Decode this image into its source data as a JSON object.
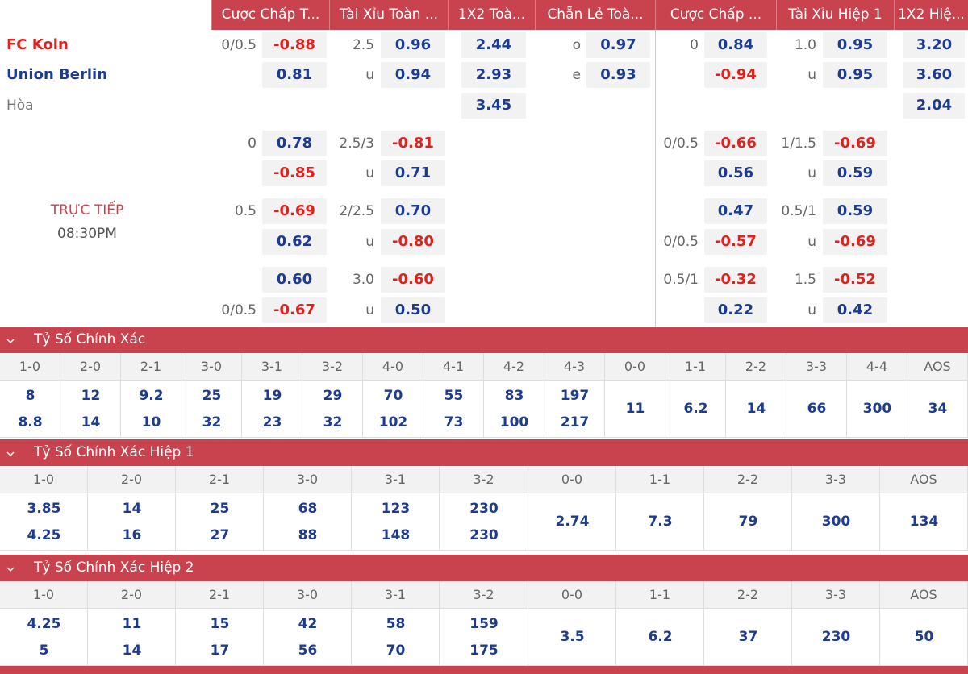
{
  "headers": [
    "Cược Chấp T...",
    "Tài Xỉu Toàn ...",
    "1X2 Toà...",
    "Chẵn Lẻ Toà...",
    "Cược Chấp ...",
    "Tài Xỉu Hiệp 1",
    "1X2 Hiệ..."
  ],
  "match": {
    "home": "FC Koln",
    "away": "Union Berlin",
    "draw": "Hòa",
    "status": "TRỰC TIẾP",
    "time": "08:30PM"
  },
  "odds_rows": [
    {
      "ft_handicap": {
        "line": "0/0.5",
        "odds": "-0.88"
      },
      "ft_total": {
        "line": "2.5",
        "odds": "0.96"
      },
      "ft_1x2": "2.44",
      "ft_odd_even": {
        "line": "o",
        "odds": "0.97"
      },
      "h1_handicap": {
        "line": "0",
        "odds": "0.84"
      },
      "h1_total": {
        "line": "1.0",
        "odds": "0.95"
      },
      "h1_1x2": "3.20"
    },
    {
      "ft_handicap": {
        "odds": "0.81"
      },
      "ft_total": {
        "line": "u",
        "odds": "0.94"
      },
      "ft_1x2": "2.93",
      "ft_odd_even": {
        "line": "e",
        "odds": "0.93"
      },
      "h1_handicap": {
        "odds": "-0.94"
      },
      "h1_total": {
        "line": "u",
        "odds": "0.95"
      },
      "h1_1x2": "3.60"
    },
    {
      "ft_1x2": "3.45",
      "h1_1x2": "2.04"
    },
    {
      "ft_handicap": {
        "line": "0",
        "odds": "0.78"
      },
      "ft_total": {
        "line": "2.5/3",
        "odds": "-0.81"
      },
      "h1_handicap": {
        "line": "0/0.5",
        "odds": "-0.66"
      },
      "h1_total": {
        "line": "1/1.5",
        "odds": "-0.69"
      }
    },
    {
      "ft_handicap": {
        "odds": "-0.85"
      },
      "ft_total": {
        "line": "u",
        "odds": "0.71"
      },
      "h1_handicap": {
        "odds": "0.56"
      },
      "h1_total": {
        "line": "u",
        "odds": "0.59"
      }
    },
    {
      "ft_handicap": {
        "line": "0.5",
        "odds": "-0.69"
      },
      "ft_total": {
        "line": "2/2.5",
        "odds": "0.70"
      },
      "h1_handicap": {
        "odds": "0.47"
      },
      "h1_total": {
        "line": "0.5/1",
        "odds": "0.59"
      }
    },
    {
      "ft_handicap": {
        "odds": "0.62"
      },
      "ft_total": {
        "line": "u",
        "odds": "-0.80"
      },
      "h1_handicap": {
        "line": "0/0.5",
        "odds": "-0.57"
      },
      "h1_total": {
        "line": "u",
        "odds": "-0.69"
      }
    },
    {
      "ft_handicap": {
        "odds": "0.60"
      },
      "ft_total": {
        "line": "3.0",
        "odds": "-0.60"
      },
      "h1_handicap": {
        "line": "0.5/1",
        "odds": "-0.32"
      },
      "h1_total": {
        "line": "1.5",
        "odds": "-0.52"
      }
    },
    {
      "ft_handicap": {
        "line": "0/0.5",
        "odds": "-0.67"
      },
      "ft_total": {
        "line": "u",
        "odds": "0.50"
      },
      "h1_handicap": {
        "odds": "0.22"
      },
      "h1_total": {
        "line": "u",
        "odds": "0.42"
      }
    }
  ],
  "sections": [
    {
      "title": "Tỷ Số Chính Xác",
      "columns": [
        {
          "score": "1-0",
          "values": [
            "8",
            "8.8"
          ]
        },
        {
          "score": "2-0",
          "values": [
            "12",
            "14"
          ]
        },
        {
          "score": "2-1",
          "values": [
            "9.2",
            "10"
          ]
        },
        {
          "score": "3-0",
          "values": [
            "25",
            "32"
          ]
        },
        {
          "score": "3-1",
          "values": [
            "19",
            "23"
          ]
        },
        {
          "score": "3-2",
          "values": [
            "29",
            "32"
          ]
        },
        {
          "score": "4-0",
          "values": [
            "70",
            "102"
          ]
        },
        {
          "score": "4-1",
          "values": [
            "55",
            "73"
          ]
        },
        {
          "score": "4-2",
          "values": [
            "83",
            "100"
          ]
        },
        {
          "score": "4-3",
          "values": [
            "197",
            "217"
          ]
        },
        {
          "score": "0-0",
          "values": [
            "11"
          ]
        },
        {
          "score": "1-1",
          "values": [
            "6.2"
          ]
        },
        {
          "score": "2-2",
          "values": [
            "14"
          ]
        },
        {
          "score": "3-3",
          "values": [
            "66"
          ]
        },
        {
          "score": "4-4",
          "values": [
            "300"
          ]
        },
        {
          "score": "AOS",
          "values": [
            "34"
          ]
        }
      ]
    },
    {
      "title": "Tỷ Số Chính Xác Hiệp 1",
      "columns": [
        {
          "score": "1-0",
          "values": [
            "3.85",
            "4.25"
          ]
        },
        {
          "score": "2-0",
          "values": [
            "14",
            "16"
          ]
        },
        {
          "score": "2-1",
          "values": [
            "25",
            "27"
          ]
        },
        {
          "score": "3-0",
          "values": [
            "68",
            "88"
          ]
        },
        {
          "score": "3-1",
          "values": [
            "123",
            "148"
          ]
        },
        {
          "score": "3-2",
          "values": [
            "230",
            "230"
          ]
        },
        {
          "score": "0-0",
          "values": [
            "2.74"
          ]
        },
        {
          "score": "1-1",
          "values": [
            "7.3"
          ]
        },
        {
          "score": "2-2",
          "values": [
            "79"
          ]
        },
        {
          "score": "3-3",
          "values": [
            "300"
          ]
        },
        {
          "score": "AOS",
          "values": [
            "134"
          ]
        }
      ]
    },
    {
      "title": "Tỷ Số Chính Xác Hiệp 2",
      "columns": [
        {
          "score": "1-0",
          "values": [
            "4.25",
            "5"
          ]
        },
        {
          "score": "2-0",
          "values": [
            "11",
            "14"
          ]
        },
        {
          "score": "2-1",
          "values": [
            "15",
            "17"
          ]
        },
        {
          "score": "3-0",
          "values": [
            "42",
            "56"
          ]
        },
        {
          "score": "3-1",
          "values": [
            "58",
            "70"
          ]
        },
        {
          "score": "3-2",
          "values": [
            "159",
            "175"
          ]
        },
        {
          "score": "0-0",
          "values": [
            "3.5"
          ]
        },
        {
          "score": "1-1",
          "values": [
            "6.2"
          ]
        },
        {
          "score": "2-2",
          "values": [
            "37"
          ]
        },
        {
          "score": "3-3",
          "values": [
            "230"
          ]
        },
        {
          "score": "AOS",
          "values": [
            "50"
          ]
        }
      ]
    }
  ]
}
